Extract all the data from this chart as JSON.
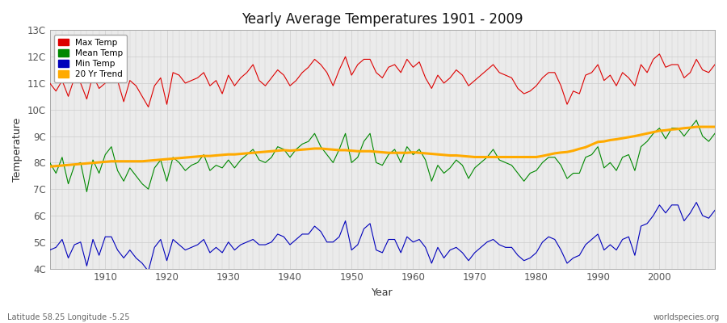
{
  "title": "Yearly Average Temperatures 1901 - 2009",
  "xlabel": "Year",
  "ylabel": "Temperature",
  "subtitle": "Latitude 58.25 Longitude -5.25",
  "watermark": "worldspecies.org",
  "years": [
    1901,
    1902,
    1903,
    1904,
    1905,
    1906,
    1907,
    1908,
    1909,
    1910,
    1911,
    1912,
    1913,
    1914,
    1915,
    1916,
    1917,
    1918,
    1919,
    1920,
    1921,
    1922,
    1923,
    1924,
    1925,
    1926,
    1927,
    1928,
    1929,
    1930,
    1931,
    1932,
    1933,
    1934,
    1935,
    1936,
    1937,
    1938,
    1939,
    1940,
    1941,
    1942,
    1943,
    1944,
    1945,
    1946,
    1947,
    1948,
    1949,
    1950,
    1951,
    1952,
    1953,
    1954,
    1955,
    1956,
    1957,
    1958,
    1959,
    1960,
    1961,
    1962,
    1963,
    1964,
    1965,
    1966,
    1967,
    1968,
    1969,
    1970,
    1971,
    1972,
    1973,
    1974,
    1975,
    1976,
    1977,
    1978,
    1979,
    1980,
    1981,
    1982,
    1983,
    1984,
    1985,
    1986,
    1987,
    1988,
    1989,
    1990,
    1991,
    1992,
    1993,
    1994,
    1995,
    1996,
    1997,
    1998,
    1999,
    2000,
    2001,
    2002,
    2003,
    2004,
    2005,
    2006,
    2007,
    2008,
    2009
  ],
  "max_temp": [
    11.0,
    10.7,
    11.1,
    10.5,
    11.2,
    11.0,
    10.4,
    11.3,
    10.8,
    11.0,
    11.5,
    11.1,
    10.3,
    11.1,
    10.9,
    10.5,
    10.1,
    10.9,
    11.2,
    10.2,
    11.4,
    11.3,
    11.0,
    11.1,
    11.2,
    11.4,
    10.9,
    11.1,
    10.6,
    11.3,
    10.9,
    11.2,
    11.4,
    11.7,
    11.1,
    10.9,
    11.2,
    11.5,
    11.3,
    10.9,
    11.1,
    11.4,
    11.6,
    11.9,
    11.7,
    11.4,
    10.9,
    11.5,
    12.0,
    11.3,
    11.7,
    11.9,
    11.9,
    11.4,
    11.2,
    11.6,
    11.7,
    11.4,
    11.9,
    11.6,
    11.8,
    11.2,
    10.8,
    11.3,
    11.0,
    11.2,
    11.5,
    11.3,
    10.9,
    11.1,
    11.3,
    11.5,
    11.7,
    11.4,
    11.3,
    11.2,
    10.8,
    10.6,
    10.7,
    10.9,
    11.2,
    11.4,
    11.4,
    10.9,
    10.2,
    10.7,
    10.6,
    11.3,
    11.4,
    11.7,
    11.1,
    11.3,
    10.9,
    11.4,
    11.2,
    10.9,
    11.7,
    11.4,
    11.9,
    12.1,
    11.6,
    11.7,
    11.7,
    11.2,
    11.4,
    11.9,
    11.5,
    11.4,
    11.7
  ],
  "mean_temp": [
    8.0,
    7.6,
    8.2,
    7.2,
    7.9,
    8.0,
    6.9,
    8.1,
    7.6,
    8.3,
    8.6,
    7.7,
    7.3,
    7.8,
    7.5,
    7.2,
    7.0,
    7.8,
    8.1,
    7.3,
    8.2,
    8.0,
    7.7,
    7.9,
    8.0,
    8.3,
    7.7,
    7.9,
    7.8,
    8.1,
    7.8,
    8.1,
    8.3,
    8.5,
    8.1,
    8.0,
    8.2,
    8.6,
    8.5,
    8.2,
    8.5,
    8.7,
    8.8,
    9.1,
    8.6,
    8.3,
    8.0,
    8.5,
    9.1,
    8.0,
    8.2,
    8.8,
    9.1,
    8.0,
    7.9,
    8.3,
    8.5,
    8.0,
    8.6,
    8.3,
    8.5,
    8.1,
    7.3,
    7.9,
    7.6,
    7.8,
    8.1,
    7.9,
    7.4,
    7.8,
    8.0,
    8.2,
    8.5,
    8.1,
    8.0,
    7.9,
    7.6,
    7.3,
    7.6,
    7.7,
    8.0,
    8.2,
    8.2,
    7.9,
    7.4,
    7.6,
    7.6,
    8.2,
    8.3,
    8.6,
    7.8,
    8.0,
    7.7,
    8.2,
    8.3,
    7.7,
    8.6,
    8.8,
    9.1,
    9.3,
    8.9,
    9.3,
    9.3,
    9.0,
    9.3,
    9.6,
    9.0,
    8.8,
    9.1
  ],
  "min_temp": [
    4.7,
    4.8,
    5.1,
    4.4,
    4.9,
    5.0,
    4.1,
    5.1,
    4.5,
    5.2,
    5.2,
    4.7,
    4.4,
    4.7,
    4.4,
    4.2,
    3.9,
    4.8,
    5.1,
    4.3,
    5.1,
    4.9,
    4.7,
    4.8,
    4.9,
    5.1,
    4.6,
    4.8,
    4.6,
    5.0,
    4.7,
    4.9,
    5.0,
    5.1,
    4.9,
    4.9,
    5.0,
    5.3,
    5.2,
    4.9,
    5.1,
    5.3,
    5.3,
    5.6,
    5.4,
    5.0,
    5.0,
    5.2,
    5.8,
    4.7,
    4.9,
    5.5,
    5.7,
    4.7,
    4.6,
    5.1,
    5.1,
    4.6,
    5.2,
    5.0,
    5.1,
    4.8,
    4.2,
    4.8,
    4.4,
    4.7,
    4.8,
    4.6,
    4.3,
    4.6,
    4.8,
    5.0,
    5.1,
    4.9,
    4.8,
    4.8,
    4.5,
    4.3,
    4.4,
    4.6,
    5.0,
    5.2,
    5.1,
    4.7,
    4.2,
    4.4,
    4.5,
    4.9,
    5.1,
    5.3,
    4.7,
    4.9,
    4.7,
    5.1,
    5.2,
    4.5,
    5.6,
    5.7,
    6.0,
    6.4,
    6.1,
    6.4,
    6.4,
    5.8,
    6.1,
    6.5,
    6.0,
    5.9,
    6.2
  ],
  "trend_years": [
    1901,
    1902,
    1903,
    1904,
    1905,
    1906,
    1907,
    1908,
    1909,
    1910,
    1911,
    1912,
    1913,
    1914,
    1915,
    1916,
    1917,
    1918,
    1919,
    1920,
    1921,
    1922,
    1923,
    1924,
    1925,
    1926,
    1927,
    1928,
    1929,
    1930,
    1931,
    1932,
    1933,
    1934,
    1935,
    1936,
    1937,
    1938,
    1939,
    1940,
    1941,
    1942,
    1943,
    1944,
    1945,
    1946,
    1947,
    1948,
    1949,
    1950,
    1951,
    1952,
    1953,
    1954,
    1955,
    1956,
    1957,
    1958,
    1959,
    1960,
    1961,
    1962,
    1963,
    1964,
    1965,
    1966,
    1967,
    1968,
    1969,
    1970,
    1971,
    1972,
    1973,
    1974,
    1975,
    1976,
    1977,
    1978,
    1979,
    1980,
    1981,
    1982,
    1983,
    1984,
    1985,
    1986,
    1987,
    1988,
    1989,
    1990,
    1991,
    1992,
    1993,
    1994,
    1995,
    1996,
    1997,
    1998,
    1999,
    2000,
    2001,
    2002,
    2003,
    2004,
    2005,
    2006,
    2007,
    2008,
    2009
  ],
  "trend_vals": [
    7.85,
    7.87,
    7.89,
    7.91,
    7.93,
    7.95,
    7.97,
    7.99,
    8.01,
    8.03,
    8.05,
    8.05,
    8.05,
    8.05,
    8.05,
    8.05,
    8.07,
    8.09,
    8.11,
    8.13,
    8.15,
    8.17,
    8.19,
    8.21,
    8.23,
    8.25,
    8.25,
    8.27,
    8.29,
    8.31,
    8.31,
    8.33,
    8.35,
    8.37,
    8.39,
    8.41,
    8.43,
    8.45,
    8.47,
    8.45,
    8.47,
    8.49,
    8.51,
    8.53,
    8.53,
    8.51,
    8.49,
    8.47,
    8.47,
    8.45,
    8.43,
    8.43,
    8.43,
    8.41,
    8.39,
    8.37,
    8.37,
    8.37,
    8.37,
    8.39,
    8.37,
    8.35,
    8.33,
    8.31,
    8.29,
    8.27,
    8.27,
    8.25,
    8.23,
    8.21,
    8.21,
    8.21,
    8.21,
    8.21,
    8.21,
    8.21,
    8.21,
    8.21,
    8.21,
    8.21,
    8.25,
    8.3,
    8.35,
    8.38,
    8.4,
    8.45,
    8.52,
    8.58,
    8.68,
    8.78,
    8.8,
    8.85,
    8.88,
    8.92,
    8.96,
    9.0,
    9.05,
    9.1,
    9.15,
    9.2,
    9.22,
    9.25,
    9.27,
    9.3,
    9.32,
    9.35,
    9.35,
    9.35,
    9.35
  ],
  "max_color": "#dd0000",
  "mean_color": "#008800",
  "min_color": "#0000bb",
  "trend_color": "#ffaa00",
  "fig_bg_color": "#ffffff",
  "plot_bg_color": "#ebebeb",
  "ylim": [
    4.0,
    13.0
  ],
  "yticks": [
    4,
    5,
    6,
    7,
    8,
    9,
    10,
    11,
    12,
    13
  ],
  "ytick_labels": [
    "4C",
    "5C",
    "6C",
    "7C",
    "8C",
    "9C",
    "10C",
    "11C",
    "12C",
    "13C"
  ],
  "xlim": [
    1901,
    2009
  ],
  "xtick_vals": [
    1910,
    1920,
    1930,
    1940,
    1950,
    1960,
    1970,
    1980,
    1990,
    2000
  ],
  "legend_labels": [
    "Max Temp",
    "Mean Temp",
    "Min Temp",
    "20 Yr Trend"
  ],
  "legend_colors": [
    "#dd0000",
    "#008800",
    "#0000bb",
    "#ffaa00"
  ]
}
